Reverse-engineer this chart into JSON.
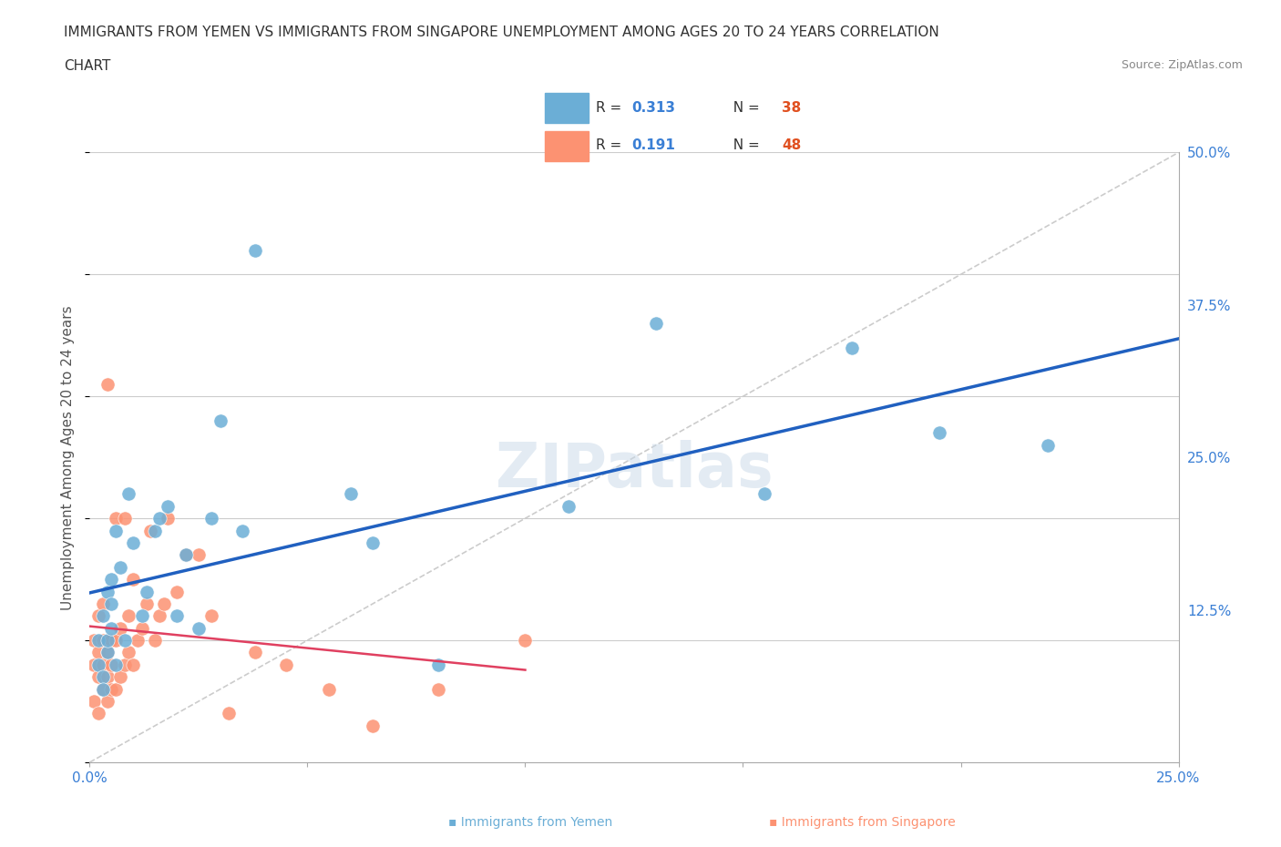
{
  "title_line1": "IMMIGRANTS FROM YEMEN VS IMMIGRANTS FROM SINGAPORE UNEMPLOYMENT AMONG AGES 20 TO 24 YEARS CORRELATION",
  "title_line2": "CHART",
  "source": "Source: ZipAtlas.com",
  "xlabel": "",
  "ylabel": "Unemployment Among Ages 20 to 24 years",
  "xlim": [
    0.0,
    0.25
  ],
  "ylim": [
    0.0,
    0.5
  ],
  "xticks": [
    0.0,
    0.05,
    0.1,
    0.15,
    0.2,
    0.25
  ],
  "xticklabels": [
    "0.0%",
    "",
    "",
    "",
    "",
    "25.0%"
  ],
  "yticks_right": [
    0.0,
    0.125,
    0.25,
    0.375,
    0.5
  ],
  "yticklabels_right": [
    "",
    "12.5%",
    "25.0%",
    "37.5%",
    "50.0%"
  ],
  "yemen_color": "#6baed6",
  "singapore_color": "#fc9272",
  "yemen_r": 0.313,
  "yemen_n": 38,
  "singapore_r": 0.191,
  "singapore_n": 48,
  "background_color": "#ffffff",
  "grid_color": "#cccccc",
  "title_color": "#333333",
  "watermark_text": "ZIPatlas",
  "watermark_color": "#c8d8e8",
  "yemen_scatter_x": [
    0.002,
    0.002,
    0.003,
    0.003,
    0.003,
    0.004,
    0.004,
    0.004,
    0.005,
    0.005,
    0.005,
    0.006,
    0.006,
    0.007,
    0.008,
    0.009,
    0.01,
    0.012,
    0.013,
    0.015,
    0.016,
    0.018,
    0.02,
    0.022,
    0.025,
    0.028,
    0.03,
    0.035,
    0.038,
    0.06,
    0.065,
    0.08,
    0.11,
    0.13,
    0.155,
    0.175,
    0.195,
    0.22
  ],
  "yemen_scatter_y": [
    0.08,
    0.1,
    0.07,
    0.12,
    0.06,
    0.09,
    0.14,
    0.1,
    0.15,
    0.11,
    0.13,
    0.08,
    0.19,
    0.16,
    0.1,
    0.22,
    0.18,
    0.12,
    0.14,
    0.19,
    0.2,
    0.21,
    0.12,
    0.17,
    0.11,
    0.2,
    0.28,
    0.19,
    0.42,
    0.22,
    0.18,
    0.08,
    0.21,
    0.36,
    0.22,
    0.34,
    0.27,
    0.26
  ],
  "singapore_scatter_x": [
    0.001,
    0.001,
    0.001,
    0.002,
    0.002,
    0.002,
    0.002,
    0.003,
    0.003,
    0.003,
    0.003,
    0.004,
    0.004,
    0.004,
    0.004,
    0.005,
    0.005,
    0.005,
    0.006,
    0.006,
    0.006,
    0.007,
    0.007,
    0.008,
    0.008,
    0.009,
    0.009,
    0.01,
    0.01,
    0.011,
    0.012,
    0.013,
    0.014,
    0.015,
    0.016,
    0.017,
    0.018,
    0.02,
    0.022,
    0.025,
    0.028,
    0.032,
    0.038,
    0.045,
    0.055,
    0.065,
    0.08,
    0.1
  ],
  "singapore_scatter_y": [
    0.05,
    0.08,
    0.1,
    0.04,
    0.07,
    0.09,
    0.12,
    0.06,
    0.08,
    0.1,
    0.13,
    0.05,
    0.07,
    0.09,
    0.31,
    0.06,
    0.08,
    0.1,
    0.06,
    0.1,
    0.2,
    0.07,
    0.11,
    0.08,
    0.2,
    0.09,
    0.12,
    0.08,
    0.15,
    0.1,
    0.11,
    0.13,
    0.19,
    0.1,
    0.12,
    0.13,
    0.2,
    0.14,
    0.17,
    0.17,
    0.12,
    0.04,
    0.09,
    0.08,
    0.06,
    0.03,
    0.06,
    0.1
  ],
  "legend_box_color": "#f0f4ff",
  "legend_text_color_r": "#3a7fd5",
  "legend_text_color_n": "#e05020"
}
